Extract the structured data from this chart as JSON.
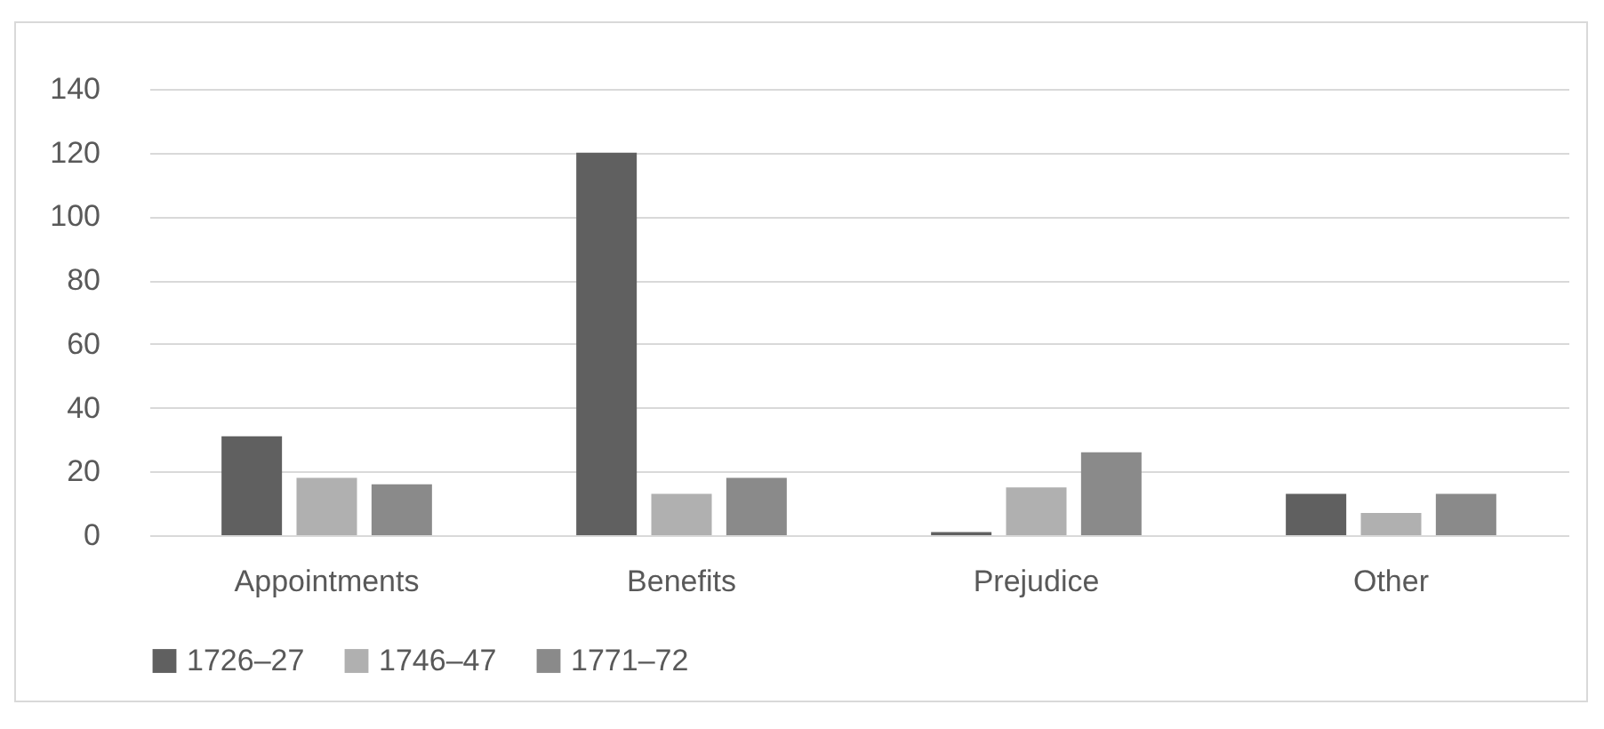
{
  "chart_data": {
    "type": "bar",
    "categories": [
      "Appointments",
      "Benefits",
      "Prejudice",
      "Other"
    ],
    "series": [
      {
        "name": "1726–27",
        "color": "#606060",
        "values": [
          31,
          120,
          1,
          13
        ]
      },
      {
        "name": "1746–47",
        "color": "#b0b0b0",
        "values": [
          18,
          13,
          15,
          7
        ]
      },
      {
        "name": "1771–72",
        "color": "#8a8a8a",
        "values": [
          16,
          18,
          26,
          13
        ]
      }
    ],
    "ylim": [
      0,
      140
    ],
    "yticks": [
      0,
      20,
      40,
      60,
      80,
      100,
      120,
      140
    ],
    "grid": "y",
    "legend": "bottom"
  }
}
